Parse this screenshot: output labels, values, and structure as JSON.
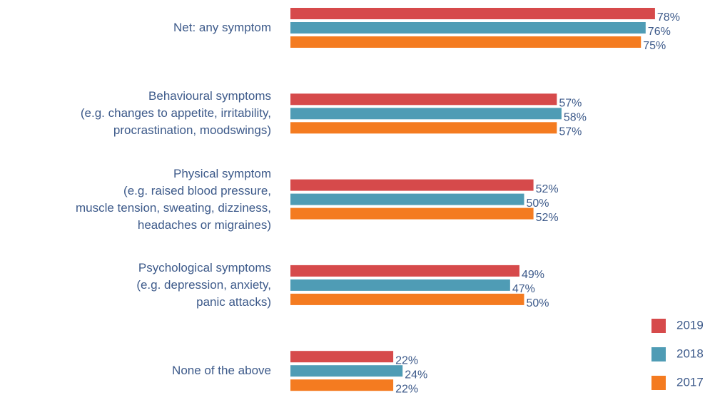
{
  "chart_data": {
    "type": "hbar",
    "categories": [
      "Net: any symptom",
      "Behavioural symptoms\n(e.g. changes to appetite, irritability,\nprocrastination, moodswings)",
      "Physical symptom\n(e.g. raised blood pressure,\nmuscle tension, sweating, dizziness,\nheadaches or migraines)",
      "Psychological symptoms\n(e.g. depression, anxiety,\npanic attacks)",
      "None of the above"
    ],
    "series": [
      {
        "name": "2019",
        "color": "#d64a4b",
        "values": [
          78,
          57,
          52,
          49,
          22
        ],
        "value_labels": [
          "78%",
          "57%",
          "52%",
          "49%",
          "22%"
        ]
      },
      {
        "name": "2018",
        "color": "#4f9cb5",
        "values": [
          76,
          58,
          50,
          47,
          24
        ],
        "value_labels": [
          "76%",
          "58%",
          "50%",
          "47%",
          "24%"
        ]
      },
      {
        "name": "2017",
        "color": "#f47b20",
        "values": [
          75,
          57,
          52,
          50,
          22
        ],
        "value_labels": [
          "75%",
          "57%",
          "52%",
          "50%",
          "22%"
        ]
      }
    ],
    "xlim": [
      0,
      100
    ],
    "legend": "bottom-right"
  }
}
